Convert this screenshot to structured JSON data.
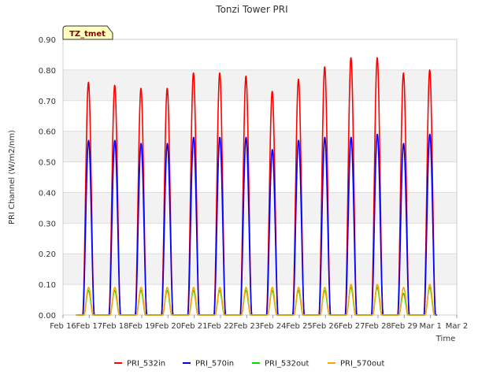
{
  "chart_data": {
    "type": "line",
    "title": "Tonzi Tower PRI",
    "xlabel": "Time",
    "ylabel": "PRI Channel (W/m2/nm)",
    "badge": "TZ_tmet",
    "xlim": [
      0,
      15
    ],
    "ylim": [
      0.0,
      0.9
    ],
    "grid": true,
    "legend_position": "bottom",
    "x_tick_labels": [
      "Feb 16",
      "Feb 17",
      "Feb 18",
      "Feb 19",
      "Feb 20",
      "Feb 21",
      "Feb 22",
      "Feb 23",
      "Feb 24",
      "Feb 25",
      "Feb 26",
      "Feb 27",
      "Feb 28",
      "Feb 29",
      "Mar 1",
      "Mar 2"
    ],
    "y_tick_labels": [
      "0.00",
      "0.10",
      "0.20",
      "0.30",
      "0.40",
      "0.50",
      "0.60",
      "0.70",
      "0.80",
      "0.90"
    ],
    "day_labels": [
      "Feb 16",
      "Feb 17",
      "Feb 18",
      "Feb 19",
      "Feb 20",
      "Feb 21",
      "Feb 22",
      "Feb 23",
      "Feb 24",
      "Feb 25",
      "Feb 26",
      "Feb 27",
      "Feb 28",
      "Feb 29"
    ],
    "series": [
      {
        "name": "PRI_532in",
        "color": "#ff0000",
        "daily_peaks": [
          0.76,
          0.75,
          0.74,
          0.74,
          0.79,
          0.79,
          0.78,
          0.73,
          0.77,
          0.81,
          0.84,
          0.84,
          0.79,
          0.8
        ]
      },
      {
        "name": "PRI_570in",
        "color": "#0000ff",
        "daily_peaks": [
          0.57,
          0.57,
          0.56,
          0.56,
          0.58,
          0.58,
          0.58,
          0.54,
          0.57,
          0.58,
          0.58,
          0.59,
          0.56,
          0.59
        ]
      },
      {
        "name": "PRI_532out",
        "color": "#00dd00",
        "daily_peaks": [
          0.08,
          0.08,
          0.08,
          0.08,
          0.08,
          0.08,
          0.08,
          0.08,
          0.08,
          0.08,
          0.09,
          0.09,
          0.07,
          0.09
        ]
      },
      {
        "name": "PRI_570out",
        "color": "#ffa500",
        "daily_peaks": [
          0.09,
          0.09,
          0.09,
          0.09,
          0.09,
          0.09,
          0.09,
          0.09,
          0.09,
          0.09,
          0.1,
          0.1,
          0.09,
          0.1
        ]
      }
    ]
  }
}
